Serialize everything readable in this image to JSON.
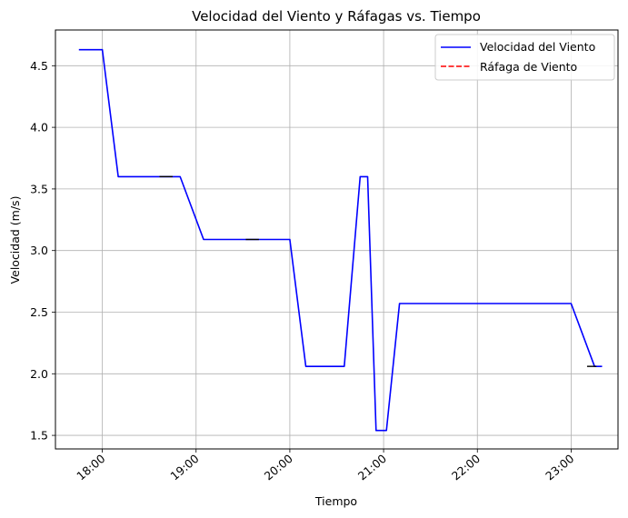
{
  "chart_data": {
    "type": "line",
    "title": "Velocidad del Viento y Ráfagas vs. Tiempo",
    "xlabel": "Tiempo",
    "ylabel": "Velocidad (m/s)",
    "x_ticks": [
      {
        "label": "18:00",
        "x": 18.0
      },
      {
        "label": "19:00",
        "x": 19.0
      },
      {
        "label": "20:00",
        "x": 20.0
      },
      {
        "label": "21:00",
        "x": 21.0
      },
      {
        "label": "22:00",
        "x": 22.0
      },
      {
        "label": "23:00",
        "x": 23.0
      }
    ],
    "y_ticks": [
      1.5,
      2.0,
      2.5,
      3.0,
      3.5,
      4.0,
      4.5
    ],
    "xlim": [
      17.5,
      23.5
    ],
    "ylim": [
      1.39,
      4.79
    ],
    "grid": true,
    "legend_position": "top-right",
    "series": [
      {
        "name": "Velocidad del Viento",
        "color": "#0000ff",
        "style": "solid",
        "x": [
          17.75,
          18.0,
          18.17,
          18.83,
          19.08,
          20.0,
          20.17,
          20.58,
          20.75,
          20.83,
          20.92,
          21.03,
          21.17,
          23.0,
          23.25,
          23.33
        ],
        "values": [
          4.63,
          4.63,
          3.6,
          3.6,
          3.09,
          3.09,
          2.06,
          2.06,
          3.6,
          3.6,
          1.54,
          1.54,
          2.57,
          2.57,
          2.06,
          2.06
        ]
      },
      {
        "name": "Ráfaga de Viento",
        "color": "#ff0000",
        "style": "dashed",
        "x": [],
        "values": []
      }
    ],
    "annotations": [
      {
        "x": [
          18.61,
          18.75
        ],
        "y": 3.6
      },
      {
        "x": [
          19.53,
          19.67
        ],
        "y": 3.09
      },
      {
        "x": [
          23.17,
          23.27
        ],
        "y": 2.06
      }
    ]
  }
}
